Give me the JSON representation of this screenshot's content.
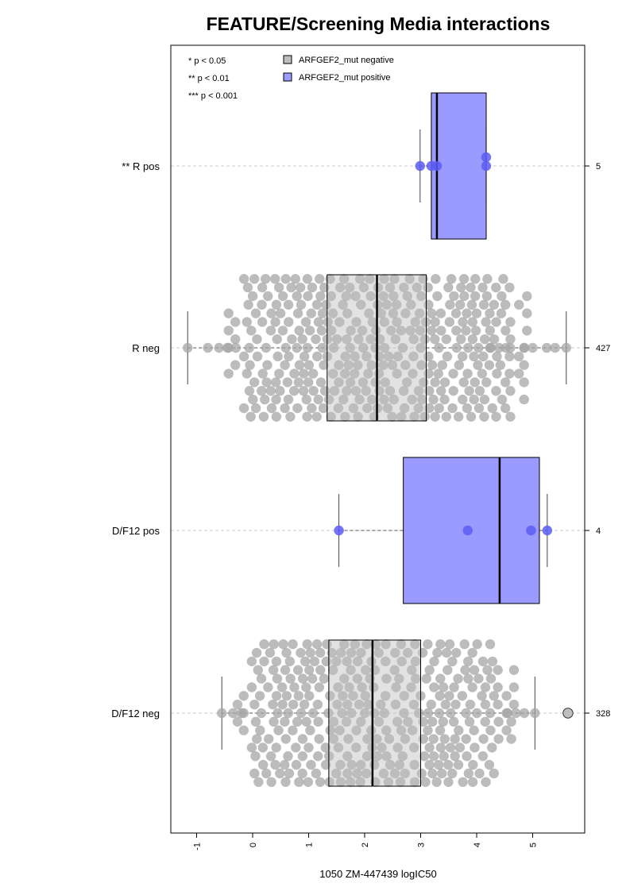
{
  "chart_data": {
    "type": "boxplot-beeswarm",
    "title": "FEATURE/Screening Media interactions",
    "xlabel": "1050 ZM-447439 logIC50",
    "xlim": [
      -1.45,
      5.95
    ],
    "xticks": [
      -1,
      0,
      1,
      2,
      3,
      4,
      5
    ],
    "xtick_labels": [
      "-1",
      "0",
      "1",
      "2",
      "3",
      "4",
      "5"
    ],
    "orientation": "horizontal",
    "grid": "dashed horizontal line through each group",
    "significance_legend": [
      "* p < 0.05",
      "** p < 0.01",
      "*** p < 0.001"
    ],
    "legend": [
      {
        "label": "ARFGEF2_mut negative",
        "color": "#bebebe"
      },
      {
        "label": "ARFGEF2_mut positive",
        "color": "#9a9aff"
      }
    ],
    "colors": {
      "negative_box": "#bebebe",
      "negative_points": "#a6a6a6",
      "positive_box": "#9a9aff",
      "positive_points": "#5c5cf5",
      "grid": "#c8c8c8"
    },
    "groups": [
      {
        "label": "** R pos",
        "count_label": "5",
        "mutation": "positive",
        "q1": 3.19,
        "median": 3.29,
        "q3": 4.17,
        "whisker_low": 2.99,
        "whisker_high": 4.17,
        "points": [
          2.99,
          3.19,
          3.29,
          4.17,
          4.17
        ]
      },
      {
        "label": "R neg",
        "count_label": "427",
        "mutation": "negative",
        "q1": 1.33,
        "median": 2.22,
        "q3": 3.1,
        "whisker_low": -1.16,
        "whisker_high": 5.6,
        "n": 427,
        "points": [
          -1.16,
          5.6,
          5.4,
          5.25,
          5.0,
          4.85,
          -0.8,
          -0.6,
          -0.45,
          -0.3,
          4.6,
          4.4,
          4.25
        ]
      },
      {
        "label": "D/F12 pos",
        "count_label": "4",
        "mutation": "positive",
        "q1": 2.69,
        "median": 4.41,
        "q3": 5.12,
        "whisker_low": 1.54,
        "whisker_high": 5.26,
        "points": [
          1.54,
          3.84,
          4.97,
          5.26
        ]
      },
      {
        "label": "D/F12 neg",
        "count_label": "328",
        "mutation": "negative",
        "q1": 1.36,
        "median": 2.14,
        "q3": 3.0,
        "whisker_low": -0.55,
        "whisker_high": 5.04,
        "n": 328,
        "outliers": [
          5.63
        ],
        "points": [
          -0.55,
          -0.35,
          -0.2,
          5.04,
          4.85,
          4.7,
          4.55
        ]
      }
    ]
  }
}
